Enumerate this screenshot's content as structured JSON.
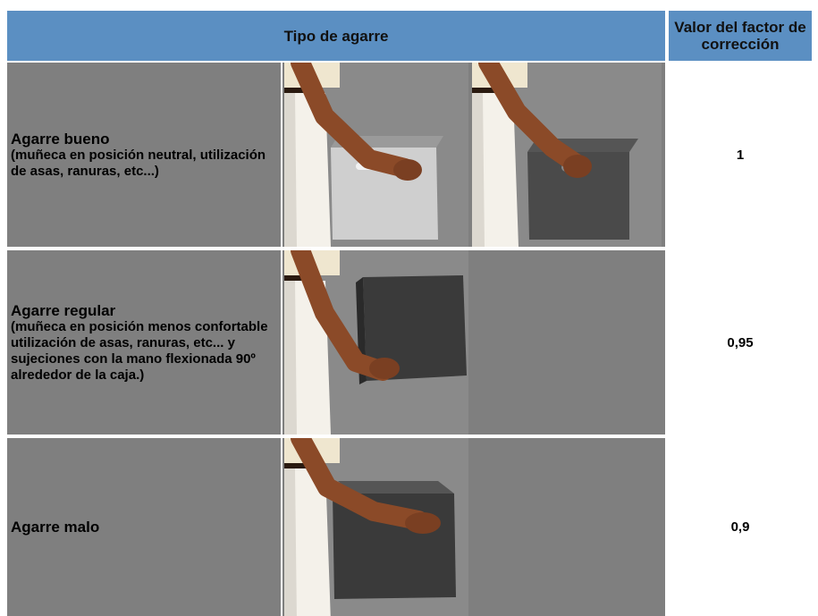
{
  "table": {
    "header": [
      "Tipo de agarre",
      "Valor del factor de corrección"
    ],
    "rows": [
      {
        "title": "Agarre bueno",
        "description": "(muñeca en posición neutral, utilización de asas, ranuras, etc...)",
        "value": "1"
      },
      {
        "title": "Agarre regular",
        "description": "(muñeca en posición menos confortable utilización de asas, ranuras, etc... y sujeciones con la mano flexionada 90º alrededor de la caja.)",
        "value": "0,95"
      },
      {
        "title": "Agarre malo",
        "description": null,
        "value": "0,9"
      }
    ]
  }
}
